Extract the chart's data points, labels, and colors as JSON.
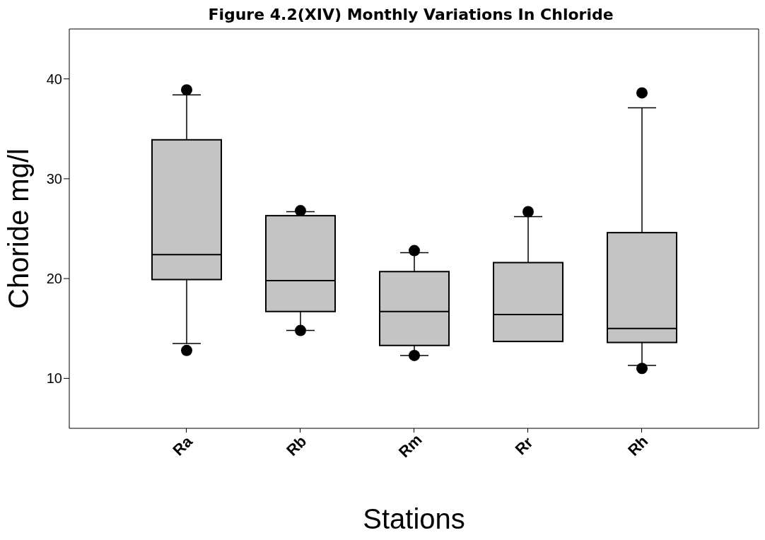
{
  "chart_data": {
    "type": "box",
    "title": "Figure 4.2(XIV) Monthly Variations In Chloride",
    "xlabel": "Stations",
    "ylabel": "Choride mg/l",
    "categories": [
      "Ra",
      "Rb",
      "Rm",
      "Rr",
      "Rh"
    ],
    "color": "#c4c4c4",
    "boxes": [
      {
        "low": 13.5,
        "q1": 19.9,
        "median": 22.4,
        "q3": 33.9,
        "high": 38.4,
        "outliers": [
          38.9,
          12.8
        ]
      },
      {
        "low": 14.8,
        "q1": 16.7,
        "median": 19.8,
        "q3": 26.3,
        "high": 26.7,
        "outliers": [
          26.8,
          14.8
        ]
      },
      {
        "low": 12.3,
        "q1": 13.3,
        "median": 16.7,
        "q3": 20.7,
        "high": 22.6,
        "outliers": [
          22.8,
          12.3
        ]
      },
      {
        "low": 13.7,
        "q1": 13.7,
        "median": 16.4,
        "q3": 21.6,
        "high": 26.2,
        "outliers": [
          26.7
        ]
      },
      {
        "low": 11.3,
        "q1": 13.6,
        "median": 15.0,
        "q3": 24.6,
        "high": 37.1,
        "outliers": [
          38.6,
          11.0
        ]
      }
    ],
    "ylim": [
      5,
      45
    ],
    "yticks": [
      10,
      20,
      30,
      40
    ],
    "grid": false
  }
}
